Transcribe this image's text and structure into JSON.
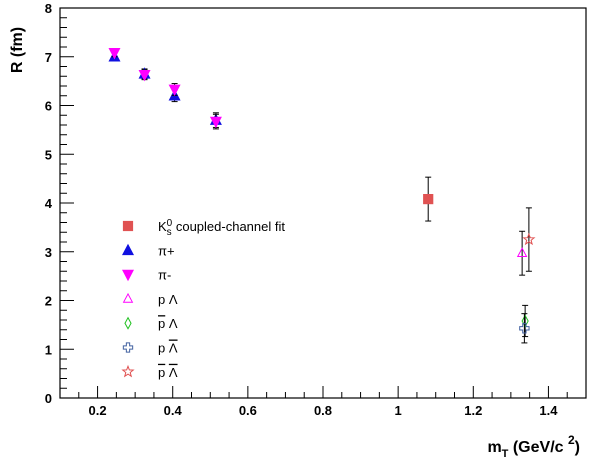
{
  "chart_data": {
    "type": "scatter",
    "title": "",
    "ylabel": "R (fm)",
    "xlabel": {
      "main": "m",
      "sub": "T",
      "rest": " (GeV/c ",
      "sup": "2",
      "close": ")"
    },
    "xlim": [
      0.1,
      1.5
    ],
    "ylim": [
      0,
      8
    ],
    "xticks": [
      0.2,
      0.4,
      0.6,
      0.8,
      1,
      1.2,
      1.4
    ],
    "xtick_labels": [
      "0.2",
      "0.4",
      "0.6",
      "0.8",
      "1",
      "1.2",
      "1.4"
    ],
    "yticks": [
      0,
      1,
      2,
      3,
      4,
      5,
      6,
      7,
      8
    ],
    "ytick_labels": [
      "0",
      "1",
      "2",
      "3",
      "4",
      "5",
      "6",
      "7",
      "8"
    ],
    "grid": false,
    "legend_position": "lower-left",
    "series": [
      {
        "key": "k0s",
        "symbol": "square",
        "color": "#e05252",
        "points": [
          {
            "x": 1.08,
            "y": 4.08,
            "err": 0.45
          }
        ]
      },
      {
        "key": "piplus",
        "symbol": "triangle-up",
        "color": "#1010e0",
        "points": [
          {
            "x": 0.245,
            "y": 7.0,
            "err": 0.08
          },
          {
            "x": 0.325,
            "y": 6.65,
            "err": 0.1
          },
          {
            "x": 0.405,
            "y": 6.2,
            "err": 0.12
          },
          {
            "x": 0.515,
            "y": 5.7,
            "err": 0.15
          }
        ]
      },
      {
        "key": "piminus",
        "symbol": "triangle-down",
        "color": "#ff00ff",
        "points": [
          {
            "x": 0.245,
            "y": 7.08,
            "err": 0.08
          },
          {
            "x": 0.325,
            "y": 6.63,
            "err": 0.1
          },
          {
            "x": 0.405,
            "y": 6.33,
            "err": 0.12
          },
          {
            "x": 0.515,
            "y": 5.67,
            "err": 0.15
          }
        ]
      },
      {
        "key": "pLambda",
        "symbol": "open-triangle",
        "color": "#ff00ff",
        "points": [
          {
            "x": 1.33,
            "y": 2.97,
            "err": 0.45
          }
        ]
      },
      {
        "key": "pbarLambda",
        "symbol": "open-diamond",
        "color": "#20c020",
        "points": [
          {
            "x": 1.338,
            "y": 1.58,
            "err": 0.32
          }
        ]
      },
      {
        "key": "pLambdabar",
        "symbol": "open-cross",
        "color": "#4060a0",
        "points": [
          {
            "x": 1.336,
            "y": 1.43,
            "err": 0.3
          }
        ]
      },
      {
        "key": "pbarLambdabar",
        "symbol": "open-star",
        "color": "#e05050",
        "points": [
          {
            "x": 1.348,
            "y": 3.25,
            "err": 0.65
          }
        ]
      }
    ],
    "legend": [
      {
        "key": "k0s",
        "parts": [
          {
            "t": "K"
          },
          {
            "t": "s",
            "sub": true
          },
          {
            "t": "0",
            "sup": true
          },
          {
            "t": " coupled-channel fit"
          }
        ]
      },
      {
        "key": "piplus",
        "parts": [
          {
            "t": "π+"
          }
        ]
      },
      {
        "key": "piminus",
        "parts": [
          {
            "t": "π-"
          }
        ]
      },
      {
        "key": "pLambda",
        "parts": [
          {
            "t": "p Λ"
          }
        ]
      },
      {
        "key": "pbarLambda",
        "parts": [
          {
            "t": "p",
            "bar": true
          },
          {
            "t": " Λ"
          }
        ]
      },
      {
        "key": "pLambdabar",
        "parts": [
          {
            "t": "p "
          },
          {
            "t": "Λ",
            "bar": true
          }
        ]
      },
      {
        "key": "pbarLambdabar",
        "parts": [
          {
            "t": "p",
            "bar": true
          },
          {
            "t": " "
          },
          {
            "t": "Λ",
            "bar": true
          }
        ]
      }
    ]
  }
}
